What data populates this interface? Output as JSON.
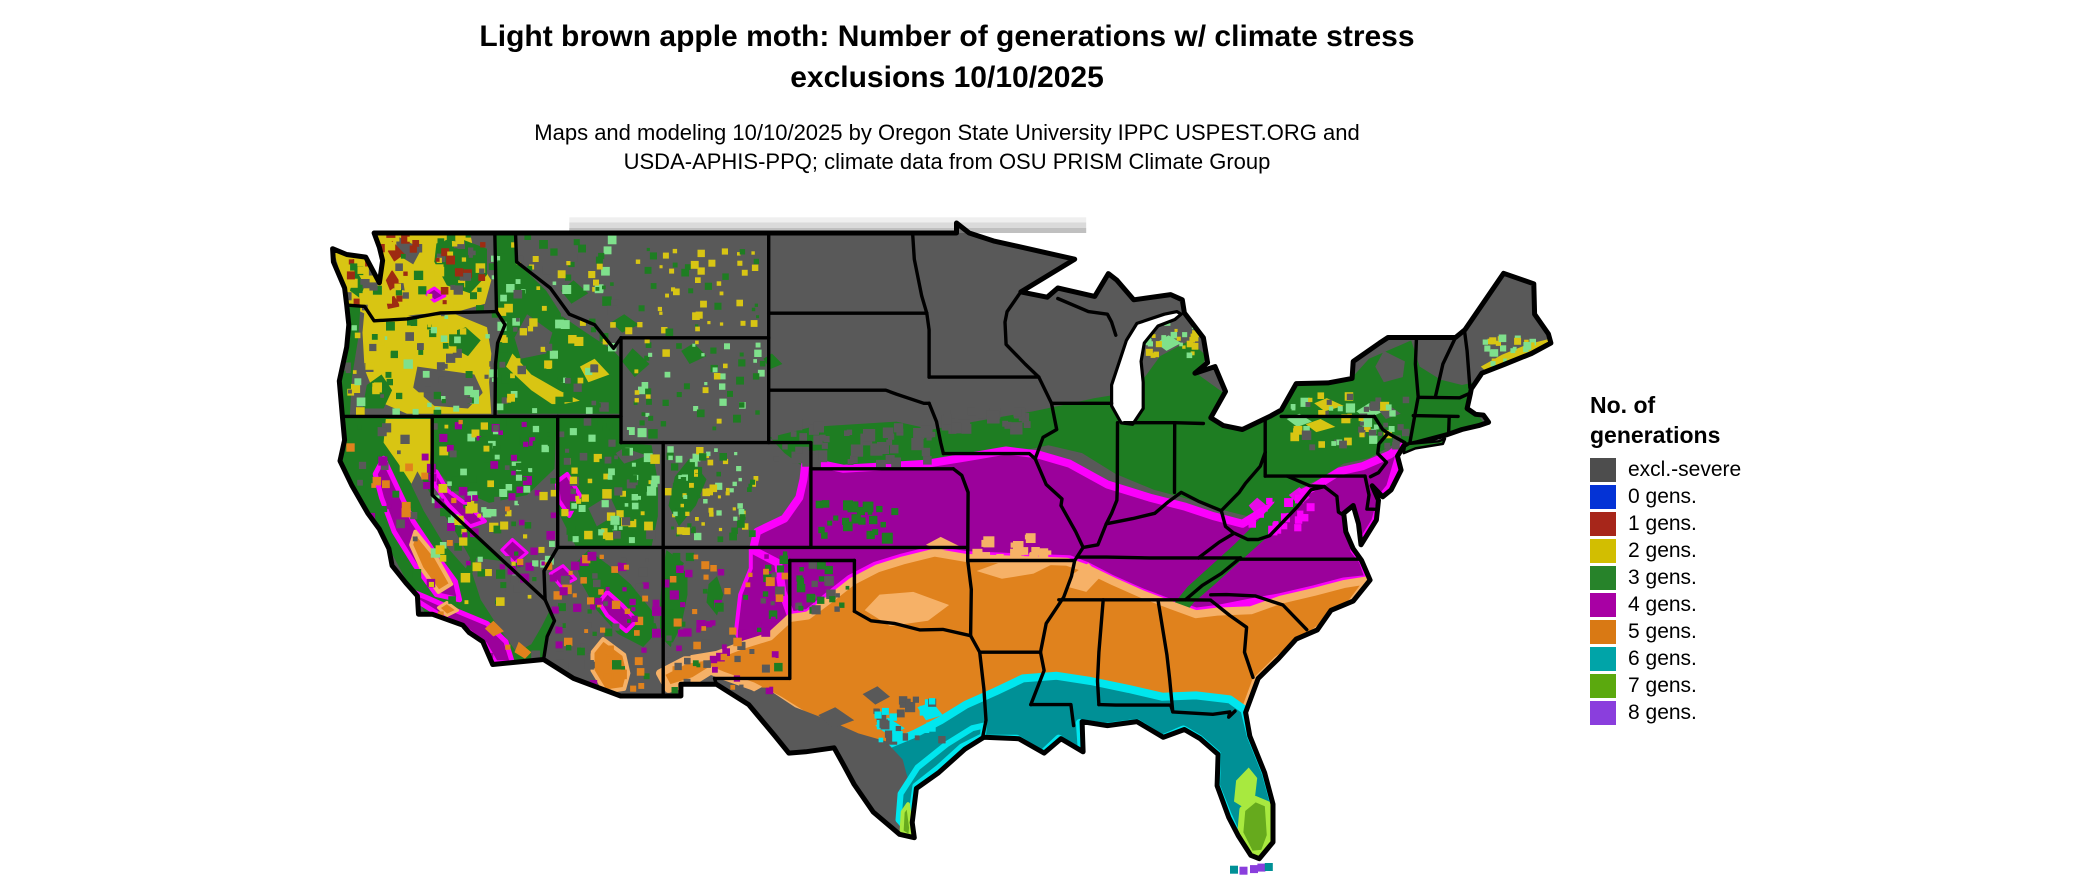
{
  "header": {
    "title_line1": "Light brown apple moth: Number of generations w/ climate stress",
    "title_line2": "exclusions 10/10/2025",
    "subtitle_line1": "Maps and modeling 10/10/2025 by Oregon State University IPPC USPEST.ORG and",
    "subtitle_line2": "USDA-APHIS-PPQ; climate data from OSU PRISM Climate Group"
  },
  "legend": {
    "title_line1": "No. of",
    "title_line2": "generations",
    "items": [
      {
        "label": "excl.-severe",
        "color": "#4D4D4D"
      },
      {
        "label": "0 gens.",
        "color": "#0433D6"
      },
      {
        "label": "1 gens.",
        "color": "#A7261A"
      },
      {
        "label": "2 gens.",
        "color": "#D2BE01"
      },
      {
        "label": "3 gens.",
        "color": "#27832A"
      },
      {
        "label": "4 gens.",
        "color": "#A800A4"
      },
      {
        "label": "5 gens.",
        "color": "#D97914"
      },
      {
        "label": "6 gens.",
        "color": "#00A4A8"
      },
      {
        "label": "7 gens.",
        "color": "#5BA90E"
      },
      {
        "label": "8 gens.",
        "color": "#8A3EDD"
      }
    ]
  },
  "map_palette": {
    "background": "#FFFFFF",
    "water": "#FFFFFF",
    "state_border": "#000000",
    "excl_severe": "#595959",
    "gens1": "#9E2B12",
    "gens2": "#D8C513",
    "gens3": "#1E7D22",
    "gens3_light": "#7FE08C",
    "gens4": "#9B019B",
    "gens4_light": "#FB00FB",
    "gens5": "#E0821D",
    "gens5_light": "#F6B167",
    "gens6": "#009096",
    "gens6_light": "#00E6EE",
    "gens7": "#66AA1D",
    "gens7_light": "#A8E93F",
    "gens8": "#8A3EDD",
    "canada_bleed": "#8C8C8C"
  }
}
